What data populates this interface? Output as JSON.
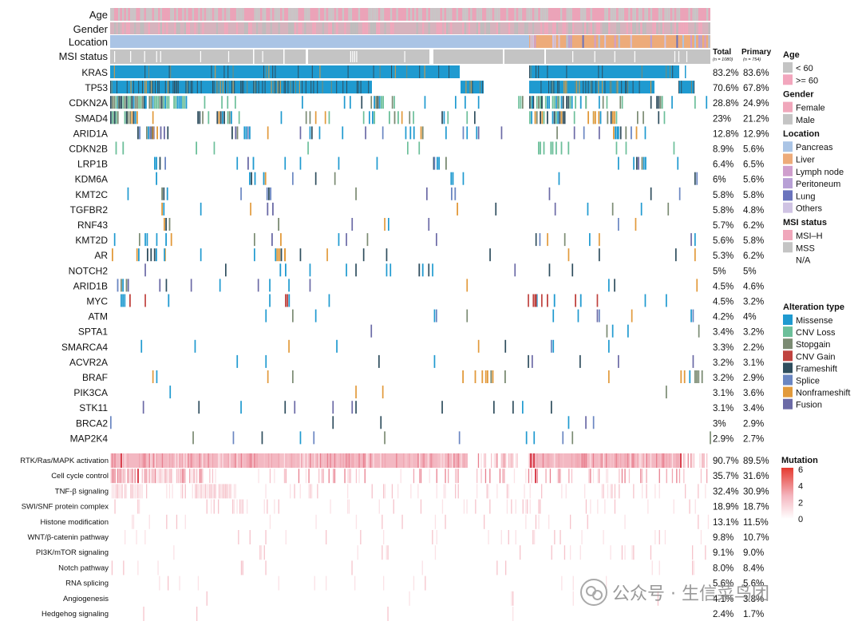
{
  "clinical_tracks": [
    "Age",
    "Gender",
    "Location",
    "MSI status"
  ],
  "column_headers": {
    "total": "Total",
    "total_n": "(n = 1080)",
    "primary": "Primary",
    "primary_n": "(n = 754)"
  },
  "chart_data": [
    {
      "type": "heatmap",
      "title": "",
      "genes": [
        "KRAS",
        "TP53",
        "CDKN2A",
        "SMAD4",
        "ARID1A",
        "CDKN2B",
        "LRP1B",
        "KDM6A",
        "KMT2C",
        "TGFBR2",
        "RNF43",
        "KMT2D",
        "AR",
        "NOTCH2",
        "ARID1B",
        "MYC",
        "ATM",
        "SPTA1",
        "SMARCA4",
        "ACVR2A",
        "BRAF",
        "PIK3CA",
        "STK11",
        "BRCA2",
        "MAP2K4"
      ],
      "total_pct": [
        "83.2%",
        "70.6%",
        "28.8%",
        "23%",
        "12.8%",
        "8.9%",
        "6.4%",
        "6%",
        "5.8%",
        "5.8%",
        "5.7%",
        "5.6%",
        "5.3%",
        "5%",
        "4.5%",
        "4.5%",
        "4.2%",
        "3.4%",
        "3.3%",
        "3.2%",
        "3.2%",
        "3.1%",
        "3.1%",
        "3%",
        "2.9%"
      ],
      "primary_pct": [
        "83.6%",
        "67.8%",
        "24.9%",
        "21.2%",
        "12.9%",
        "5.6%",
        "6.5%",
        "5.6%",
        "5.8%",
        "4.8%",
        "6.2%",
        "5.8%",
        "6.2%",
        "5%",
        "4.6%",
        "3.2%",
        "4%",
        "3.2%",
        "2.2%",
        "3.1%",
        "2.9%",
        "3.6%",
        "3.4%",
        "2.9%",
        "2.7%"
      ],
      "alteration_types": [
        "Missense",
        "CNV Loss",
        "Stopgain",
        "CNV Gain",
        "Frameshift",
        "Splice",
        "Nonframeshift",
        "Fusion"
      ]
    },
    {
      "type": "heatmap",
      "title": "",
      "pathways": [
        "RTK/Ras/MAPK activation",
        "Cell cycle control",
        "TNF-β signaling",
        "SWI/SNF protein complex",
        "Histone modification",
        "WNT/β-catenin pathway",
        "PI3K/mTOR signaling",
        "Notch pathway",
        "RNA splicing",
        "Angiogenesis",
        "Hedgehog signaling"
      ],
      "total_pct": [
        "90.7%",
        "35.7%",
        "32.4%",
        "18.9%",
        "13.1%",
        "9.8%",
        "9.1%",
        "8.0%",
        "5.6%",
        "4.1%",
        "2.4%"
      ],
      "primary_pct": [
        "89.5%",
        "31.6%",
        "30.9%",
        "18.7%",
        "11.5%",
        "10.7%",
        "9.0%",
        "8.4%",
        "5.6%",
        "3.8%",
        "1.7%"
      ],
      "color_scale": {
        "title": "Mutation",
        "ticks": [
          "6",
          "4",
          "2",
          "0"
        ],
        "min": 0,
        "max": 6
      }
    }
  ],
  "legend": [
    {
      "title": "Age",
      "items": [
        {
          "label": "< 60",
          "color": "#c4c4c4"
        },
        {
          "label": ">= 60",
          "color": "#f2a6bd"
        }
      ]
    },
    {
      "title": "Gender",
      "items": [
        {
          "label": "Female",
          "color": "#f0a7bb"
        },
        {
          "label": "Male",
          "color": "#c4c4c4"
        }
      ]
    },
    {
      "title": "Location",
      "items": [
        {
          "label": "Pancreas",
          "color": "#aac4e5"
        },
        {
          "label": "Liver",
          "color": "#edab7a"
        },
        {
          "label": "Lymph node",
          "color": "#cf9ecd"
        },
        {
          "label": "Peritoneum",
          "color": "#b8a0d6"
        },
        {
          "label": "Lung",
          "color": "#6a73bd"
        },
        {
          "label": "Others",
          "color": "#cfc3e3"
        }
      ]
    },
    {
      "title": "MSI status",
      "items": [
        {
          "label": "MSI–H",
          "color": "#f0a7bb"
        },
        {
          "label": "MSS",
          "color": "#c4c4c4"
        },
        {
          "label": "N/A",
          "color": "#ffffff"
        }
      ]
    },
    {
      "title": "Alteration type",
      "items": [
        {
          "label": "Missense",
          "color": "#1f9ad0"
        },
        {
          "label": "CNV Loss",
          "color": "#6cbf9a"
        },
        {
          "label": "Stopgain",
          "color": "#7b8b73"
        },
        {
          "label": "CNV Gain",
          "color": "#c0433f"
        },
        {
          "label": "Frameshift",
          "color": "#2f4e5e"
        },
        {
          "label": "Splice",
          "color": "#6a86c2"
        },
        {
          "label": "Nonframeshift",
          "color": "#e29a3b"
        },
        {
          "label": "Fusion",
          "color": "#6b6aa6"
        }
      ]
    }
  ],
  "watermark": "公众号 · 生信菜鸟团"
}
